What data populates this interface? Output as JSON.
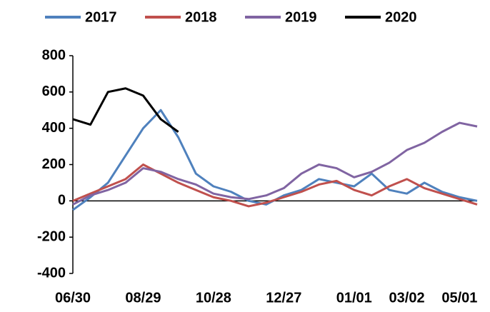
{
  "chart_data": {
    "type": "line",
    "categories": [
      "06/30",
      null,
      null,
      null,
      "08/29",
      null,
      null,
      null,
      "10/28",
      null,
      null,
      null,
      "12/27",
      null,
      null,
      null,
      "01/01",
      null,
      null,
      "03/02",
      null,
      null,
      "05/01",
      null
    ],
    "series": [
      {
        "name": "2017",
        "color": "#4f81bd",
        "values": [
          -50,
          20,
          100,
          250,
          400,
          500,
          350,
          150,
          80,
          50,
          0,
          -20,
          30,
          60,
          120,
          100,
          80,
          150,
          60,
          40,
          100,
          50,
          20,
          0
        ]
      },
      {
        "name": "2018",
        "color": "#c0504d",
        "values": [
          0,
          40,
          80,
          120,
          200,
          150,
          100,
          60,
          20,
          0,
          -30,
          -10,
          20,
          50,
          90,
          110,
          60,
          30,
          80,
          120,
          70,
          40,
          10,
          -20
        ]
      },
      {
        "name": "2019",
        "color": "#8064a2",
        "values": [
          -20,
          30,
          60,
          100,
          180,
          160,
          120,
          90,
          40,
          20,
          10,
          30,
          70,
          150,
          200,
          180,
          130,
          160,
          210,
          280,
          320,
          380,
          430,
          410
        ]
      },
      {
        "name": "2020",
        "color": "#000000",
        "values": [
          450,
          420,
          600,
          620,
          580,
          450,
          380,
          null,
          null,
          null,
          null,
          null,
          null,
          null,
          null,
          null,
          null,
          null,
          null,
          null,
          null,
          null,
          null,
          null
        ]
      }
    ],
    "ylim": [
      -400,
      800
    ],
    "yticks": [
      -400,
      -200,
      0,
      200,
      400,
      600,
      800
    ]
  }
}
